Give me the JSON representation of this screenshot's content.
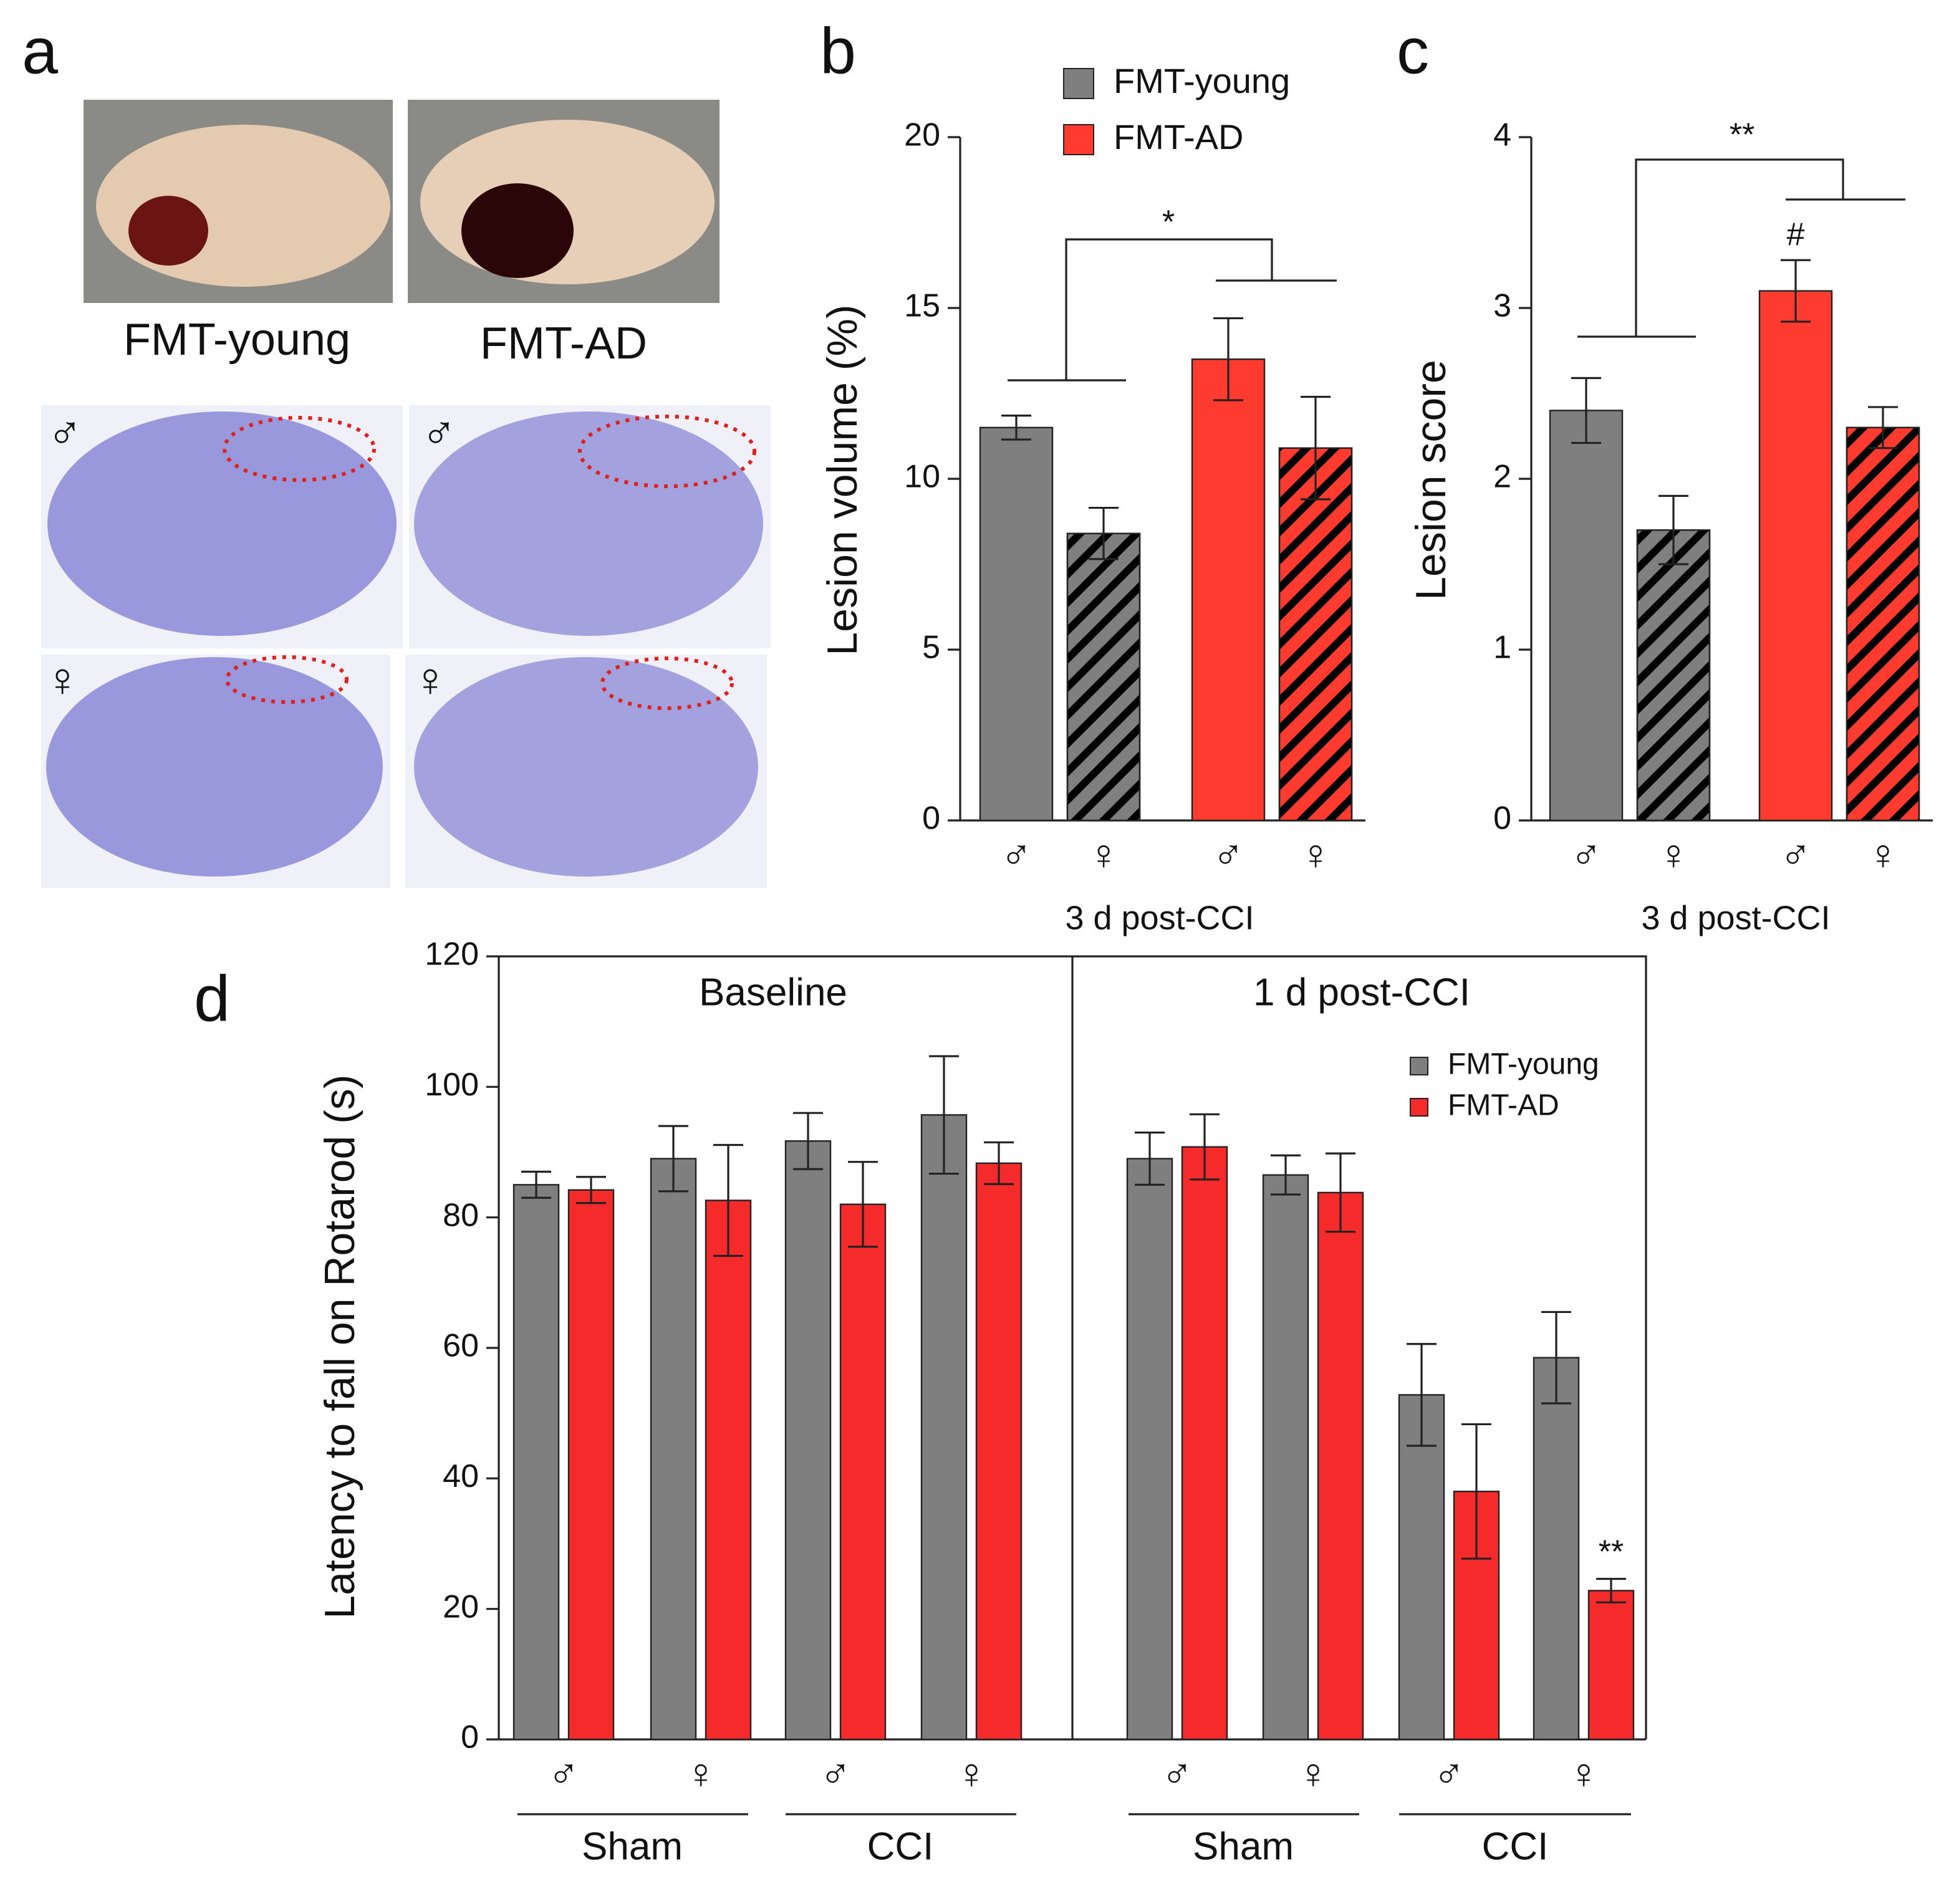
{
  "figure_a": {
    "label": "a",
    "captions": [
      "FMT-young",
      "FMT-AD"
    ],
    "row_symbols": [
      "♂",
      "♀"
    ]
  },
  "chart_data": [
    {
      "type": "bar",
      "panel_label": "b",
      "xlabel": "3 d post-CCI",
      "ylabel": "Lesion volume (%)",
      "categories": [
        "♂",
        "♀",
        "♂",
        "♀"
      ],
      "hatched": [
        false,
        true,
        false,
        true
      ],
      "series": [
        {
          "name": "FMT-young",
          "color": "#7f7f7f",
          "values": [
            11.5,
            8.4,
            null,
            null
          ],
          "errors": [
            0.35,
            0.75,
            null,
            null
          ]
        },
        {
          "name": "FMT-AD",
          "color": "#ff3b2f",
          "values": [
            null,
            null,
            13.5,
            10.9
          ],
          "errors": [
            null,
            null,
            1.2,
            1.5
          ]
        }
      ],
      "ylim": [
        0,
        20
      ],
      "yticks": [
        0,
        5,
        10,
        15,
        20
      ],
      "annotations": [
        "*"
      ],
      "legend": "top"
    },
    {
      "type": "bar",
      "panel_label": "c",
      "xlabel": "3 d post-CCI",
      "ylabel": "Lesion  score",
      "categories": [
        "♂",
        "♀",
        "♂",
        "♀"
      ],
      "hatched": [
        false,
        true,
        false,
        true
      ],
      "series": [
        {
          "name": "FMT-young",
          "color": "#7f7f7f",
          "values": [
            2.4,
            1.7,
            null,
            null
          ],
          "errors": [
            0.19,
            0.2,
            null,
            null
          ]
        },
        {
          "name": "FMT-AD",
          "color": "#ff3b2f",
          "values": [
            null,
            null,
            3.1,
            2.3
          ],
          "errors": [
            null,
            null,
            0.18,
            0.12
          ]
        }
      ],
      "ylim": [
        0,
        4
      ],
      "yticks": [
        0,
        1,
        2,
        3,
        4
      ],
      "annotations": [
        "**",
        "#"
      ]
    },
    {
      "type": "bar",
      "panel_label": "d",
      "ylabel": "Latency to fall on Rotarod (s)",
      "panels": [
        "Baseline",
        "1 d post-CCI"
      ],
      "categories": [
        "♂",
        "♀",
        "♂",
        "♀",
        "♂",
        "♀",
        "♂",
        "♀"
      ],
      "groups": [
        "Sham",
        "CCI",
        "Sham",
        "CCI"
      ],
      "series": [
        {
          "name": "FMT-young",
          "color": "#7f7f7f",
          "values": [
            85,
            89,
            91.7,
            95.7,
            89,
            86.5,
            52.8,
            58.5
          ],
          "errors": [
            2,
            5,
            4.3,
            9,
            4,
            3,
            7.8,
            7
          ]
        },
        {
          "name": "FMT-AD",
          "color": "#f52a2a",
          "values": [
            84.2,
            82.6,
            82,
            88.3,
            90.8,
            83.8,
            38,
            22.8
          ],
          "errors": [
            2,
            8.5,
            6.5,
            3.2,
            5,
            6,
            10.3,
            1.8
          ]
        }
      ],
      "ylim": [
        0,
        120
      ],
      "yticks": [
        0,
        20,
        40,
        60,
        80,
        100,
        120
      ],
      "annotations": [
        "**"
      ],
      "legend": "upper right"
    }
  ]
}
